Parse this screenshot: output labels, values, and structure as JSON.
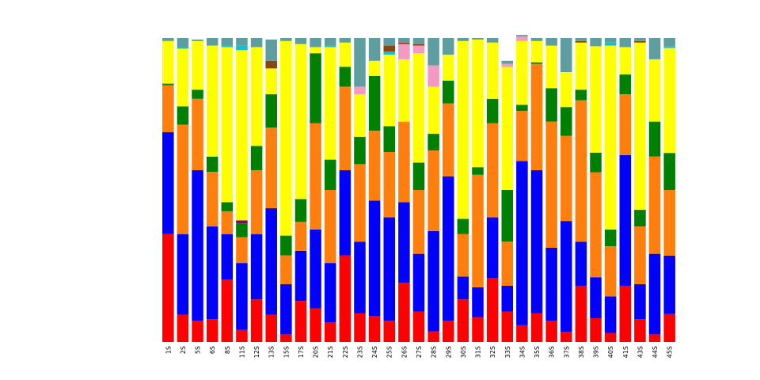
{
  "chart_data": {
    "type": "bar",
    "stacked": true,
    "normalized": true,
    "title": "",
    "xlabel": "",
    "ylabel": "",
    "ylim": [
      0,
      1
    ],
    "grid": false,
    "legend": "none",
    "y_axis_visible": false,
    "categories": [
      "1S",
      "2S",
      "5S",
      "6S",
      "8S",
      "11S",
      "12S",
      "13S",
      "15S",
      "17S",
      "20S",
      "21S",
      "22S",
      "23S",
      "24S",
      "25S",
      "26S",
      "27S",
      "28S",
      "29S",
      "30S",
      "31S",
      "32S",
      "33S",
      "34S",
      "35S",
      "36S",
      "37S",
      "38S",
      "39S",
      "40S",
      "41S",
      "43S",
      "44S",
      "45S"
    ],
    "series": [
      {
        "color": "#ff0000",
        "values": [
          0.355,
          0.09,
          0.07,
          0.075,
          0.205,
          0.04,
          0.14,
          0.09,
          0.025,
          0.135,
          0.11,
          0.065,
          0.285,
          0.095,
          0.085,
          0.07,
          0.195,
          0.1,
          0.035,
          0.07,
          0.14,
          0.082,
          0.21,
          0.1,
          0.055,
          0.095,
          0.07,
          0.033,
          0.185,
          0.078,
          0.03,
          0.185,
          0.075,
          0.025,
          0.092
        ]
      },
      {
        "color": "#0000ff",
        "values": [
          0.335,
          0.265,
          0.495,
          0.305,
          0.15,
          0.22,
          0.215,
          0.35,
          0.165,
          0.165,
          0.26,
          0.195,
          0.28,
          0.235,
          0.38,
          0.34,
          0.265,
          0.19,
          0.33,
          0.475,
          0.075,
          0.098,
          0.2,
          0.085,
          0.54,
          0.47,
          0.24,
          0.365,
          0.145,
          0.135,
          0.12,
          0.43,
          0.115,
          0.265,
          0.192
        ]
      },
      {
        "color": "#ff7f0e",
        "values": [
          0.155,
          0.36,
          0.235,
          0.18,
          0.075,
          0.085,
          0.21,
          0.265,
          0.095,
          0.095,
          0.35,
          0.24,
          0.275,
          0.255,
          0.23,
          0.215,
          0.265,
          0.21,
          0.265,
          0.24,
          0.14,
          0.37,
          0.31,
          0.145,
          0.165,
          0.35,
          0.415,
          0.28,
          0.465,
          0.345,
          0.165,
          0.2,
          0.19,
          0.32,
          0.216
        ]
      },
      {
        "color": "#008000",
        "values": [
          0.005,
          0.06,
          0.03,
          0.05,
          0.03,
          0.045,
          0.08,
          0.11,
          0.065,
          0.075,
          0.23,
          0.1,
          0.065,
          0.09,
          0.18,
          0.085,
          0,
          0.09,
          0.055,
          0.075,
          0.05,
          0.025,
          0.08,
          0.17,
          0.02,
          0.005,
          0.11,
          0.095,
          0.035,
          0.065,
          0.055,
          0.065,
          0.055,
          0.115,
          0.122
        ]
      },
      {
        "color": "#800080",
        "values": [
          0,
          0,
          0,
          0,
          0,
          0.01,
          0,
          0,
          0,
          0,
          0,
          0,
          0,
          0,
          0,
          0,
          0,
          0,
          0,
          0,
          0,
          0,
          0,
          0,
          0,
          0,
          0,
          0,
          0,
          0,
          0,
          0,
          0,
          0,
          0
        ]
      },
      {
        "color": "#ffff00",
        "values": [
          0.14,
          0.19,
          0.16,
          0.365,
          0.51,
          0.56,
          0.325,
          0.085,
          0.64,
          0.51,
          0.02,
          0.37,
          0.08,
          0.14,
          0.05,
          0.235,
          0.205,
          0.36,
          0.155,
          0.085,
          0.585,
          0.42,
          0.185,
          0.405,
          0.21,
          0.07,
          0.14,
          0.115,
          0.155,
          0.35,
          0.605,
          0.09,
          0.55,
          0.205,
          0.345
        ]
      },
      {
        "color": "#17becf",
        "values": [
          0,
          0.005,
          0,
          0,
          0.005,
          0.015,
          0,
          0,
          0,
          0,
          0,
          0.005,
          0,
          0,
          0,
          0.01,
          0,
          0,
          0,
          0,
          0,
          0,
          0,
          0,
          0,
          0,
          0,
          0,
          0,
          0,
          0.01,
          0,
          0,
          0,
          0.005
        ]
      },
      {
        "color": "#f49ac2",
        "values": [
          0,
          0,
          0,
          0,
          0,
          0,
          0,
          0,
          0,
          0,
          0,
          0,
          0,
          0.025,
          0,
          0,
          0.05,
          0.025,
          0.07,
          0,
          0,
          0,
          0,
          0.01,
          0.015,
          0,
          0,
          0,
          0,
          0,
          0,
          0,
          0,
          0,
          0
        ]
      },
      {
        "color": "#8b4513",
        "values": [
          0,
          0,
          0,
          0,
          0,
          0,
          0,
          0.025,
          0,
          0,
          0,
          0,
          0,
          0,
          0,
          0.02,
          0.005,
          0.005,
          0,
          0,
          0,
          0,
          0,
          0,
          0,
          0,
          0,
          0,
          0.005,
          0,
          0,
          0,
          0.005,
          0,
          0
        ]
      },
      {
        "color": "#5f9ea0",
        "values": [
          0.01,
          0.03,
          0.005,
          0.025,
          0.025,
          0.025,
          0.03,
          0.07,
          0.01,
          0.02,
          0.03,
          0.025,
          0.015,
          0.16,
          0.075,
          0.025,
          0.015,
          0.02,
          0.09,
          0.055,
          0.01,
          0.005,
          0.015,
          0.01,
          0.005,
          0.01,
          0.025,
          0.112,
          0.01,
          0.027,
          0.015,
          0.03,
          0.01,
          0.07,
          0.028
        ]
      }
    ]
  }
}
